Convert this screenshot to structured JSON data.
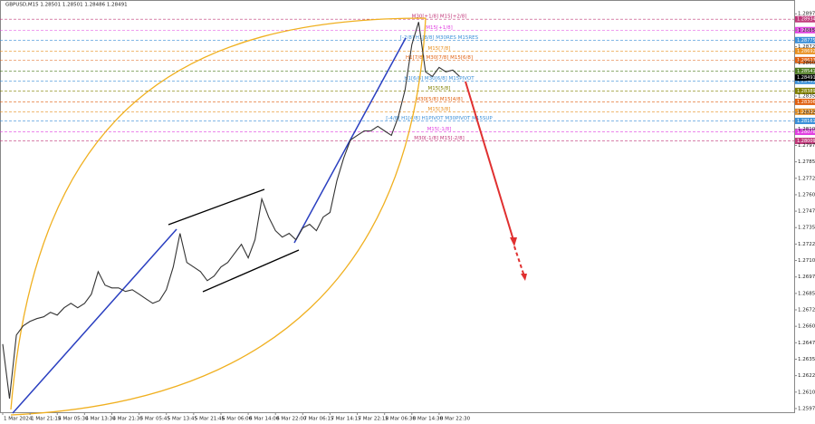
{
  "chart_data": {
    "type": "line",
    "title": "GBPUSD,M15 1.28501 1.28501 1.28486 1.28491",
    "categories": [
      "1 Mar 2024",
      null,
      null,
      null,
      "1 Mar 21:15",
      null,
      null,
      null,
      "4 Mar 05:30",
      null,
      null,
      null,
      "4 Mar 13:30",
      null,
      null,
      null,
      "4 Mar 21:30",
      null,
      null,
      null,
      "5 Mar 05:45",
      null,
      null,
      null,
      "5 Mar 13:45",
      null,
      null,
      null,
      "5 Mar 21:45",
      null,
      null,
      null,
      "6 Mar 06:00",
      null,
      null,
      null,
      "6 Mar 14:00",
      null,
      null,
      null,
      "6 Mar 22:00",
      null,
      null,
      null,
      "7 Mar 06:15",
      null,
      null,
      null,
      "7 Mar 14:15",
      null,
      null,
      null,
      "7 Mar 22:15",
      null,
      null,
      null,
      "8 Mar 06:30",
      null,
      null,
      null,
      "8 Mar 14:30",
      null,
      null,
      null,
      "8 Mar 22:30",
      null,
      null,
      null
    ],
    "series": [
      {
        "name": "GBPUSD,M15",
        "color": "#333333",
        "values": [
          1.26465,
          1.26051,
          1.26534,
          1.26603,
          1.26637,
          1.26658,
          1.26672,
          1.26706,
          1.26685,
          1.26741,
          1.26775,
          1.26741,
          1.26775,
          1.26844,
          1.27016,
          1.26913,
          1.26892,
          1.26892,
          1.26865,
          1.26878,
          1.26844,
          1.26809,
          1.26775,
          1.26796,
          1.26878,
          1.27051,
          1.27306,
          1.27085,
          1.27051,
          1.27016,
          1.26947,
          1.26982,
          1.27051,
          1.27085,
          1.27154,
          1.27223,
          1.2712,
          1.27258,
          1.27568,
          1.2743,
          1.27327,
          1.27278,
          1.27306,
          1.27258,
          1.27347,
          1.27375,
          1.27327,
          1.2743,
          1.27465,
          1.27706,
          1.27878,
          1.28016,
          1.28051,
          1.28085,
          1.28085,
          1.2812,
          1.28085,
          1.28051,
          1.28189,
          1.28396,
          1.28741,
          1.28913,
          1.28534,
          1.28499,
          1.28568,
          1.28534,
          1.28547,
          1.28499
        ]
      }
    ],
    "ylim": [
      1.25947,
      1.2908
    ],
    "yticks": [
      1.25975,
      {
        "value": 1.261,
        "label": "1.26100"
      },
      1.26225,
      {
        "value": 1.2635,
        "label": "1.26350"
      },
      1.26475,
      {
        "value": 1.266,
        "label": "1.26600"
      },
      1.26725,
      {
        "value": 1.2685,
        "label": "1.26850"
      },
      1.26975,
      {
        "value": 1.271,
        "label": "1.27100"
      },
      1.27225,
      {
        "value": 1.2735,
        "label": "1.27350"
      },
      1.27475,
      {
        "value": 1.276,
        "label": "1.27600"
      },
      1.27725,
      {
        "value": 1.2785,
        "label": "1.27850"
      },
      1.27975,
      {
        "value": 1.281,
        "label": "1.28100"
      },
      1.28225,
      {
        "value": 1.2835,
        "label": "1.28350"
      },
      1.28475,
      {
        "value": 1.286,
        "label": "1.28600"
      },
      1.28725,
      {
        "value": 1.2885,
        "label": "1.28850"
      },
      1.28975
    ],
    "levels": [
      {
        "name": "M30[+1/8] M15[+2/8]",
        "price": 1.28934,
        "color": "#c0387a"
      },
      {
        "name": "M15[+1/8]",
        "price": 1.28851,
        "color": "#e040e0"
      },
      {
        "name": "[-2/8] H1[8/8] M30RES M15RES",
        "price": 1.28775,
        "color": "#3a8fd8"
      },
      {
        "name": "M15[7/8]",
        "price": 1.28692,
        "color": "#e89020"
      },
      {
        "name": "H1[7/8] M30[7/8] M15[6/8]",
        "price": 1.28623,
        "color": "#e06010"
      },
      {
        "price": 1.28541,
        "color": "#4c7a1e"
      },
      {
        "name": "H1[6/8] M30[6/8] M15PIVOT",
        "price": 1.28465,
        "color": "#3a8fd8"
      },
      {
        "name": "M15[5/8]",
        "price": 1.28389,
        "color": "#808000"
      },
      {
        "name": "M30[5/8] M15[4/8]",
        "price": 1.28306,
        "color": "#e06010"
      },
      {
        "name": "M15[3/8]",
        "price": 1.28231,
        "color": "#e89020"
      },
      {
        "name": "[-4/8] H1[4/8] H1PIVOT M30PIVOT M15SUP",
        "price": 1.28161,
        "color": "#3a8fd8"
      },
      {
        "name": "M15[-1/8]",
        "price": 1.28078,
        "color": "#e040e0"
      },
      {
        "name": "M30[-1/8] M15[-2/8]",
        "price": 1.28009,
        "color": "#c0387a"
      }
    ],
    "current_price": 1.28491
  }
}
